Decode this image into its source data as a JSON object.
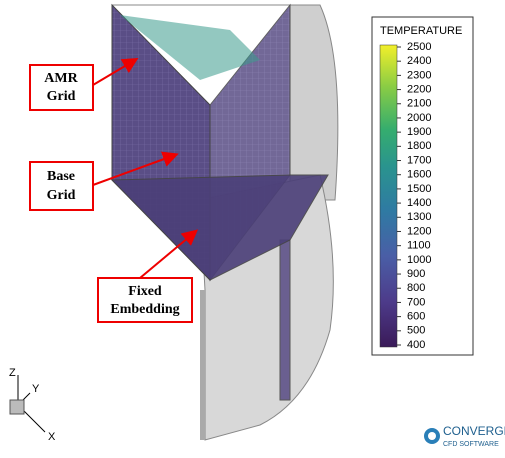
{
  "annotations": {
    "amr": [
      "AMR",
      "Grid"
    ],
    "base": [
      "Base",
      "Grid"
    ],
    "fixed": [
      "Fixed",
      "Embedding"
    ]
  },
  "colorbar": {
    "title": "TEMPERATURE",
    "ticks": [
      400,
      500,
      600,
      700,
      800,
      900,
      1000,
      1100,
      1200,
      1300,
      1400,
      1500,
      1600,
      1700,
      1800,
      1900,
      2000,
      2100,
      2200,
      2300,
      2400,
      2500
    ]
  },
  "axes": {
    "z": "Z",
    "y": "Y",
    "x": "X"
  },
  "logo": {
    "name": "CONVERGE",
    "tagline": "CFD SOFTWARE"
  }
}
